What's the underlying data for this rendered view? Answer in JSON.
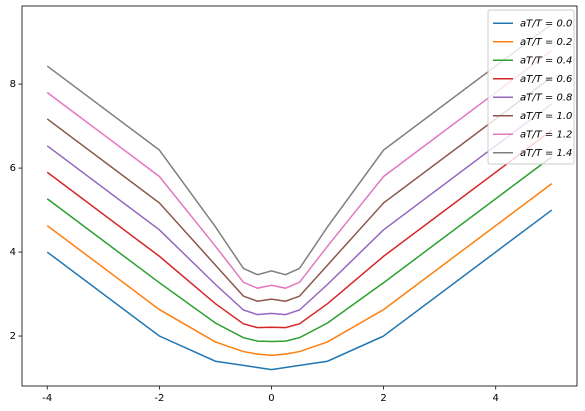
{
  "chart_data": {
    "type": "line",
    "x": [
      -4,
      -2,
      -1,
      -0.5,
      -0.25,
      0,
      0.25,
      0.5,
      1,
      2,
      5
    ],
    "series": [
      {
        "name": "aT/T = 0.0",
        "color": "#1f77b4",
        "values": [
          4,
          2,
          1.4,
          1.3,
          1.25,
          1.2,
          1.25,
          1.3,
          1.4,
          2,
          5
        ]
      },
      {
        "name": "aT/T = 0.2",
        "color": "#ff7f0e",
        "values": [
          4.63,
          2.63,
          1.86,
          1.63,
          1.57,
          1.54,
          1.57,
          1.63,
          1.86,
          2.63,
          5.63
        ]
      },
      {
        "name": "aT/T = 0.4",
        "color": "#2ca02c",
        "values": [
          5.27,
          3.27,
          2.31,
          1.96,
          1.88,
          1.87,
          1.88,
          1.96,
          2.31,
          3.27,
          6.27
        ]
      },
      {
        "name": "aT/T = 0.6",
        "color": "#d62728",
        "values": [
          5.9,
          3.9,
          2.77,
          2.29,
          2.2,
          2.21,
          2.2,
          2.29,
          2.77,
          3.9,
          6.9
        ]
      },
      {
        "name": "aT/T = 0.8",
        "color": "#9467bd",
        "values": [
          6.53,
          4.53,
          3.23,
          2.62,
          2.51,
          2.54,
          2.51,
          2.62,
          3.23,
          4.53,
          7.53
        ]
      },
      {
        "name": "aT/T = 1.0",
        "color": "#8c564b",
        "values": [
          7.17,
          5.17,
          3.69,
          2.95,
          2.83,
          2.88,
          2.83,
          2.95,
          3.69,
          5.17,
          8.17
        ]
      },
      {
        "name": "aT/T = 1.2",
        "color": "#e377c2",
        "values": [
          7.8,
          5.8,
          4.14,
          3.28,
          3.14,
          3.21,
          3.14,
          3.28,
          4.14,
          5.8,
          8.8
        ]
      },
      {
        "name": "aT/T = 1.4",
        "color": "#7f7f7f",
        "values": [
          8.43,
          6.43,
          4.6,
          3.61,
          3.46,
          3.55,
          3.46,
          3.61,
          4.6,
          6.43,
          9.43
        ]
      }
    ],
    "xlim": [
      -4.45,
      5.45
    ],
    "ylim": [
      0.81,
      9.86
    ],
    "xticks": [
      -4,
      -2,
      0,
      2,
      4
    ],
    "yticks": [
      2,
      4,
      6,
      8
    ],
    "grid": false,
    "legend": "upper right"
  }
}
